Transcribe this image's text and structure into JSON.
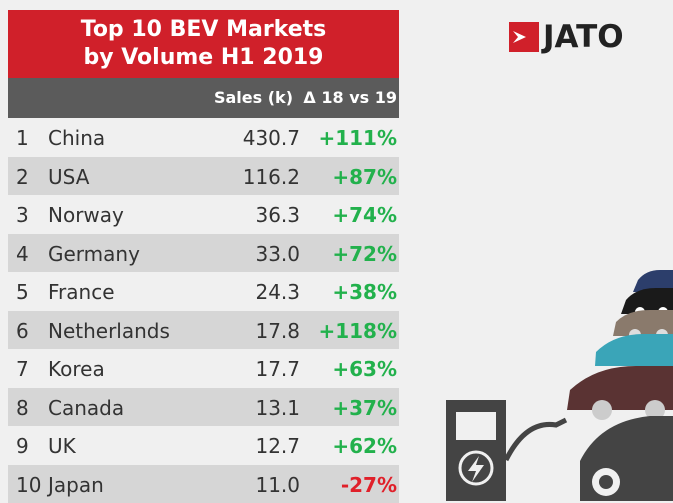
{
  "chart_data": {
    "type": "table",
    "title_line1": "Top 10 BEV Markets",
    "title_line2": "by Volume H1 2019",
    "columns": [
      "Sales (k)",
      "Δ 18 vs 19"
    ],
    "rows": [
      {
        "rank": "1",
        "country": "China",
        "sales": "430.7",
        "change": "+111%"
      },
      {
        "rank": "2",
        "country": "USA",
        "sales": "116.2",
        "change": "+87%"
      },
      {
        "rank": "3",
        "country": "Norway",
        "sales": "36.3",
        "change": "+74%"
      },
      {
        "rank": "4",
        "country": "Germany",
        "sales": "33.0",
        "change": "+72%"
      },
      {
        "rank": "5",
        "country": "France",
        "sales": "24.3",
        "change": "+38%"
      },
      {
        "rank": "6",
        "country": "Netherlands",
        "sales": "17.8",
        "change": "+118%"
      },
      {
        "rank": "7",
        "country": "Korea",
        "sales": "17.7",
        "change": "+63%"
      },
      {
        "rank": "8",
        "country": "Canada",
        "sales": "13.1",
        "change": "+37%"
      },
      {
        "rank": "9",
        "country": "UK",
        "sales": "12.7",
        "change": "+62%"
      },
      {
        "rank": "10",
        "country": "Japan",
        "sales": "11.0",
        "change": "-27%"
      }
    ]
  },
  "brand": {
    "name": "JATO"
  },
  "colors": {
    "title_bg": "#d0202a",
    "header_bg": "#5b5b5b",
    "positive": "#22b14c",
    "negative": "#e0202a"
  }
}
